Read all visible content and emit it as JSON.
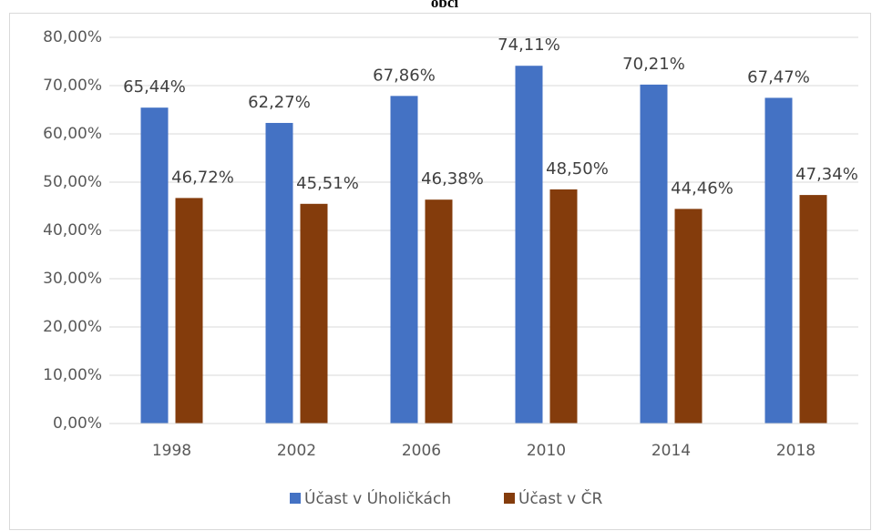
{
  "chart_data": {
    "type": "bar",
    "title": "obcí",
    "categories": [
      "1998",
      "2002",
      "2006",
      "2010",
      "2014",
      "2018"
    ],
    "series": [
      {
        "name": "Účast v Úholičkách",
        "color": "#4472c4",
        "values": [
          65.44,
          62.27,
          67.86,
          74.11,
          70.21,
          67.47
        ],
        "value_labels": [
          "65,44%",
          "62,27%",
          "67,86%",
          "74,11%",
          "70,21%",
          "67,47%"
        ]
      },
      {
        "name": "Účast v ČR",
        "color": "#843c0c",
        "values": [
          46.72,
          45.51,
          46.38,
          48.5,
          44.46,
          47.34
        ],
        "value_labels": [
          "46,72%",
          "45,51%",
          "46,38%",
          "48,50%",
          "44,46%",
          "47,34%"
        ]
      }
    ],
    "ylim": [
      0,
      80
    ],
    "yticks": [
      {
        "value": 0,
        "label": "0,00%"
      },
      {
        "value": 10,
        "label": "10,00%"
      },
      {
        "value": 20,
        "label": "20,00%"
      },
      {
        "value": 30,
        "label": "30,00%"
      },
      {
        "value": 40,
        "label": "40,00%"
      },
      {
        "value": 50,
        "label": "50,00%"
      },
      {
        "value": 60,
        "label": "60,00%"
      },
      {
        "value": 70,
        "label": "70,00%"
      },
      {
        "value": 80,
        "label": "80,00%"
      }
    ],
    "grid": true,
    "legend": "bottom"
  }
}
